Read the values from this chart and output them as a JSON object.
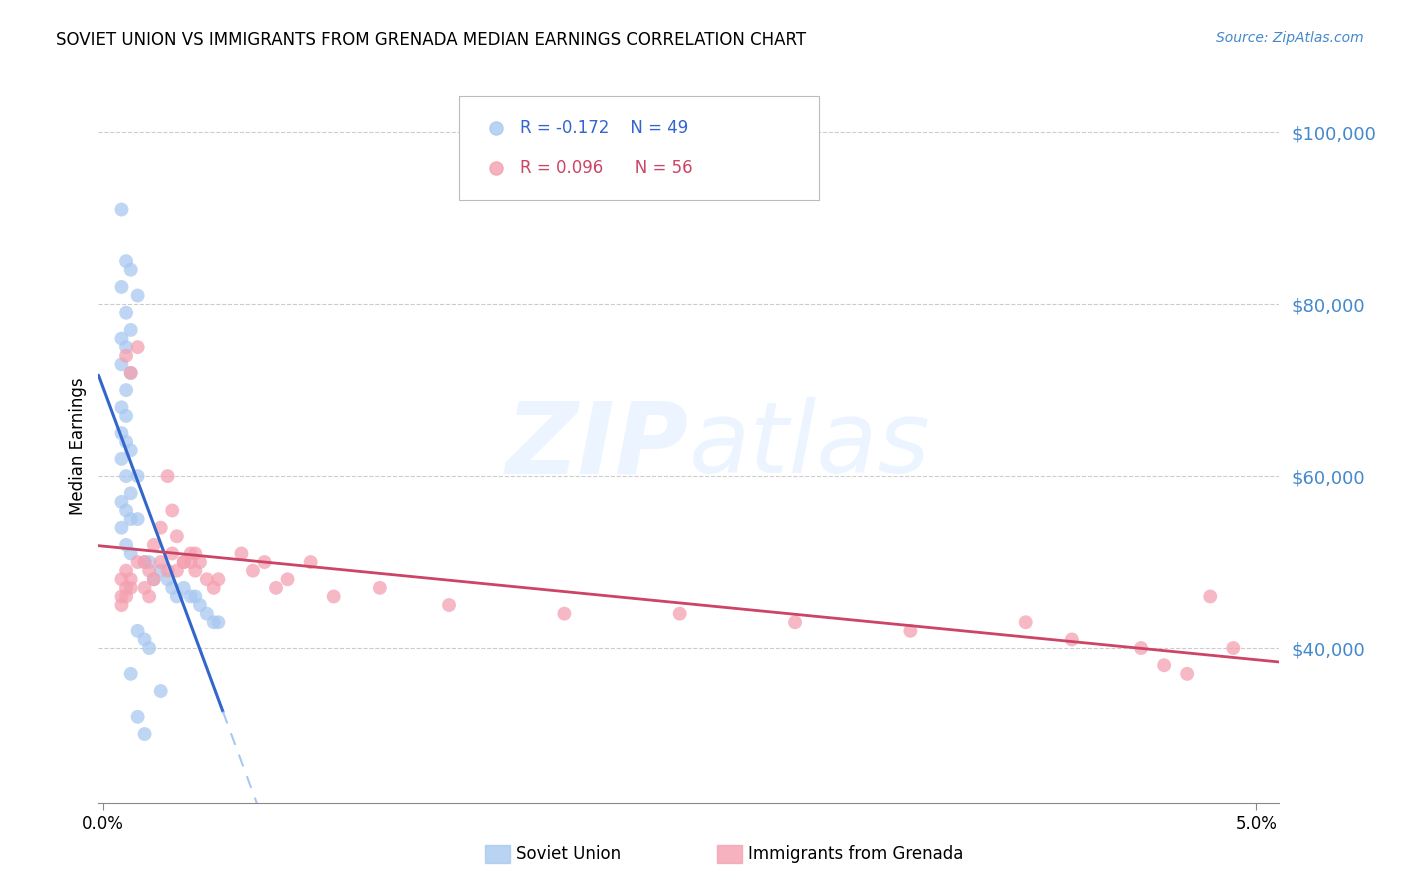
{
  "title": "SOVIET UNION VS IMMIGRANTS FROM GRENADA MEDIAN EARNINGS CORRELATION CHART",
  "source": "Source: ZipAtlas.com",
  "ylabel": "Median Earnings",
  "ytick_labels": [
    "$40,000",
    "$60,000",
    "$80,000",
    "$100,000"
  ],
  "ytick_values": [
    40000,
    60000,
    80000,
    100000
  ],
  "ymin": 22000,
  "ymax": 105000,
  "xmin": -0.0002,
  "xmax": 0.051,
  "soviet_color": "#a8c8f0",
  "grenada_color": "#f4a0b0",
  "soviet_line_color": "#3366cc",
  "grenada_line_color": "#cc4466",
  "dashed_line_color": "#a8c8f0",
  "soviet_R": "-0.172",
  "soviet_N": "49",
  "grenada_R": "0.096",
  "grenada_N": "56",
  "soviet_points_x": [
    0.0008,
    0.001,
    0.0012,
    0.0008,
    0.0015,
    0.001,
    0.0012,
    0.0008,
    0.001,
    0.0008,
    0.0012,
    0.001,
    0.0008,
    0.001,
    0.0008,
    0.001,
    0.0012,
    0.0008,
    0.001,
    0.0015,
    0.0012,
    0.0008,
    0.001,
    0.0012,
    0.0015,
    0.0008,
    0.001,
    0.0012,
    0.002,
    0.0018,
    0.0025,
    0.0022,
    0.0028,
    0.003,
    0.0035,
    0.0032,
    0.0038,
    0.004,
    0.0042,
    0.0045,
    0.0048,
    0.005,
    0.0015,
    0.0018,
    0.002,
    0.0012,
    0.0025,
    0.0015,
    0.0018
  ],
  "soviet_points_y": [
    91000,
    85000,
    84000,
    82000,
    81000,
    79000,
    77000,
    76000,
    75000,
    73000,
    72000,
    70000,
    68000,
    67000,
    65000,
    64000,
    63000,
    62000,
    60000,
    60000,
    58000,
    57000,
    56000,
    55000,
    55000,
    54000,
    52000,
    51000,
    50000,
    50000,
    49000,
    48000,
    48000,
    47000,
    47000,
    46000,
    46000,
    46000,
    45000,
    44000,
    43000,
    43000,
    42000,
    41000,
    40000,
    37000,
    35000,
    32000,
    30000
  ],
  "grenada_points_x": [
    0.0008,
    0.001,
    0.0008,
    0.001,
    0.0008,
    0.0012,
    0.001,
    0.0012,
    0.0015,
    0.001,
    0.0012,
    0.0015,
    0.0018,
    0.002,
    0.0022,
    0.0018,
    0.002,
    0.0025,
    0.0022,
    0.0025,
    0.0028,
    0.003,
    0.0028,
    0.0032,
    0.003,
    0.0035,
    0.0032,
    0.0038,
    0.0035,
    0.004,
    0.0038,
    0.0042,
    0.004,
    0.0045,
    0.005,
    0.0048,
    0.006,
    0.007,
    0.0065,
    0.008,
    0.0075,
    0.009,
    0.01,
    0.012,
    0.015,
    0.02,
    0.025,
    0.03,
    0.035,
    0.04,
    0.042,
    0.045,
    0.046,
    0.047,
    0.048,
    0.049
  ],
  "grenada_points_y": [
    48000,
    47000,
    46000,
    46000,
    45000,
    47000,
    74000,
    72000,
    50000,
    49000,
    48000,
    75000,
    50000,
    49000,
    48000,
    47000,
    46000,
    54000,
    52000,
    50000,
    60000,
    56000,
    49000,
    53000,
    51000,
    50000,
    49000,
    51000,
    50000,
    51000,
    50000,
    50000,
    49000,
    48000,
    48000,
    47000,
    51000,
    50000,
    49000,
    48000,
    47000,
    50000,
    46000,
    47000,
    45000,
    44000,
    44000,
    43000,
    42000,
    43000,
    41000,
    40000,
    38000,
    37000,
    46000,
    40000
  ]
}
